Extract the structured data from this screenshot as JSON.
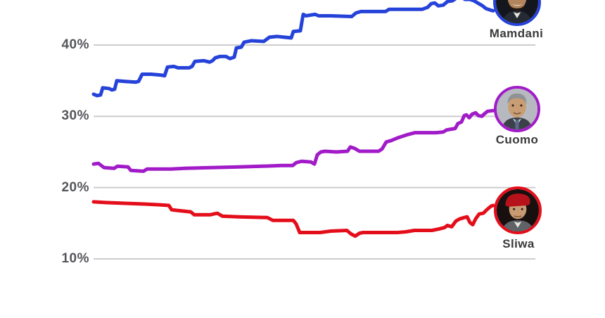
{
  "chart_data": {
    "type": "line",
    "title": "",
    "xlabel": "",
    "ylabel": "",
    "grid": true,
    "ylim": [
      10,
      47
    ],
    "x_axis_labels_visible": false,
    "legend_position": "avatar-badges-at-line-end-right",
    "yticks": [
      {
        "value": 40,
        "label": "40%"
      },
      {
        "value": 30,
        "label": "30%"
      },
      {
        "value": 20,
        "label": "20%"
      },
      {
        "value": 10,
        "label": "10%"
      }
    ],
    "colors": {
      "mamdani_blue": "#2643d9",
      "cuomo_purple": "#a11bc8",
      "sliwa_red": "#e40e1b",
      "gridline_gray": "#cdcdcd",
      "tick_text_gray": "#55565a",
      "name_text_dark": "#3a3a3c"
    },
    "series": [
      {
        "name": "Mamdani",
        "color": "#2643d9",
        "points": [
          [
            133,
            33.1
          ],
          [
            138,
            32.9
          ],
          [
            143,
            33.0
          ],
          [
            146,
            34.0
          ],
          [
            155,
            33.9
          ],
          [
            159,
            33.7
          ],
          [
            163,
            33.8
          ],
          [
            166,
            35.0
          ],
          [
            178,
            34.9
          ],
          [
            193,
            34.8
          ],
          [
            197,
            34.9
          ],
          [
            202,
            35.9
          ],
          [
            215,
            35.9
          ],
          [
            228,
            35.8
          ],
          [
            234,
            35.7
          ],
          [
            238,
            36.9
          ],
          [
            247,
            37.0
          ],
          [
            253,
            36.8
          ],
          [
            269,
            36.8
          ],
          [
            273,
            37.0
          ],
          [
            277,
            37.7
          ],
          [
            290,
            37.8
          ],
          [
            298,
            37.6
          ],
          [
            302,
            37.8
          ],
          [
            306,
            38.2
          ],
          [
            313,
            38.4
          ],
          [
            321,
            38.4
          ],
          [
            327,
            38.1
          ],
          [
            333,
            38.3
          ],
          [
            336,
            39.6
          ],
          [
            343,
            39.7
          ],
          [
            347,
            40.4
          ],
          [
            357,
            40.6
          ],
          [
            375,
            40.5
          ],
          [
            383,
            41.1
          ],
          [
            394,
            41.2
          ],
          [
            404,
            41.1
          ],
          [
            414,
            41.0
          ],
          [
            417,
            41.9
          ],
          [
            427,
            42.0
          ],
          [
            429,
            43.2
          ],
          [
            431,
            44.3
          ],
          [
            435,
            44.1
          ],
          [
            448,
            44.3
          ],
          [
            453,
            44.1
          ],
          [
            470,
            44.1
          ],
          [
            500,
            44.0
          ],
          [
            506,
            44.5
          ],
          [
            513,
            44.7
          ],
          [
            548,
            44.7
          ],
          [
            553,
            45.0
          ],
          [
            600,
            45.0
          ],
          [
            608,
            45.3
          ],
          [
            613,
            45.8
          ],
          [
            618,
            45.9
          ],
          [
            623,
            45.5
          ],
          [
            630,
            45.6
          ],
          [
            636,
            46.1
          ],
          [
            643,
            46.2
          ],
          [
            649,
            46.6
          ],
          [
            656,
            46.7
          ],
          [
            661,
            46.4
          ],
          [
            668,
            46.4
          ],
          [
            674,
            46.2
          ],
          [
            679,
            45.9
          ],
          [
            686,
            45.5
          ],
          [
            691,
            45.1
          ],
          [
            697,
            44.9
          ],
          [
            701,
            44.8
          ]
        ]
      },
      {
        "name": "Cuomo",
        "color": "#a11bc8",
        "points": [
          [
            133,
            23.3
          ],
          [
            140,
            23.4
          ],
          [
            144,
            23.1
          ],
          [
            148,
            22.8
          ],
          [
            162,
            22.7
          ],
          [
            167,
            23.0
          ],
          [
            182,
            22.9
          ],
          [
            186,
            22.4
          ],
          [
            204,
            22.3
          ],
          [
            209,
            22.6
          ],
          [
            243,
            22.6
          ],
          [
            262,
            22.7
          ],
          [
            300,
            22.8
          ],
          [
            340,
            22.9
          ],
          [
            372,
            23.0
          ],
          [
            400,
            23.1
          ],
          [
            416,
            23.1
          ],
          [
            421,
            23.5
          ],
          [
            429,
            23.7
          ],
          [
            442,
            23.6
          ],
          [
            447,
            23.3
          ],
          [
            451,
            24.6
          ],
          [
            456,
            25.0
          ],
          [
            462,
            25.1
          ],
          [
            478,
            25.0
          ],
          [
            494,
            25.1
          ],
          [
            498,
            25.7
          ],
          [
            504,
            25.5
          ],
          [
            511,
            25.1
          ],
          [
            538,
            25.1
          ],
          [
            543,
            25.4
          ],
          [
            549,
            26.4
          ],
          [
            556,
            26.6
          ],
          [
            566,
            27.0
          ],
          [
            578,
            27.4
          ],
          [
            590,
            27.7
          ],
          [
            620,
            27.7
          ],
          [
            630,
            27.8
          ],
          [
            635,
            28.1
          ],
          [
            641,
            28.2
          ],
          [
            647,
            28.3
          ],
          [
            651,
            29.0
          ],
          [
            656,
            29.2
          ],
          [
            660,
            30.1
          ],
          [
            663,
            30.2
          ],
          [
            667,
            29.8
          ],
          [
            671,
            30.3
          ],
          [
            676,
            30.5
          ],
          [
            680,
            30.1
          ],
          [
            685,
            30.0
          ],
          [
            688,
            30.3
          ],
          [
            693,
            30.7
          ],
          [
            701,
            30.8
          ]
        ]
      },
      {
        "name": "Sliwa",
        "color": "#e40e1b",
        "points": [
          [
            133,
            18.0
          ],
          [
            150,
            17.9
          ],
          [
            178,
            17.8
          ],
          [
            205,
            17.7
          ],
          [
            225,
            17.6
          ],
          [
            240,
            17.5
          ],
          [
            244,
            16.9
          ],
          [
            252,
            16.8
          ],
          [
            271,
            16.6
          ],
          [
            276,
            16.2
          ],
          [
            299,
            16.2
          ],
          [
            309,
            16.4
          ],
          [
            316,
            16.0
          ],
          [
            340,
            15.9
          ],
          [
            380,
            15.8
          ],
          [
            388,
            15.4
          ],
          [
            417,
            15.4
          ],
          [
            421,
            14.9
          ],
          [
            426,
            13.7
          ],
          [
            455,
            13.7
          ],
          [
            470,
            13.9
          ],
          [
            493,
            14.0
          ],
          [
            499,
            13.5
          ],
          [
            505,
            13.2
          ],
          [
            511,
            13.6
          ],
          [
            516,
            13.7
          ],
          [
            565,
            13.7
          ],
          [
            577,
            13.8
          ],
          [
            589,
            14.0
          ],
          [
            614,
            14.0
          ],
          [
            624,
            14.2
          ],
          [
            632,
            14.4
          ],
          [
            636,
            14.7
          ],
          [
            642,
            14.5
          ],
          [
            648,
            15.3
          ],
          [
            653,
            15.6
          ],
          [
            660,
            15.8
          ],
          [
            664,
            15.9
          ],
          [
            668,
            15.1
          ],
          [
            672,
            14.8
          ],
          [
            676,
            15.6
          ],
          [
            681,
            16.3
          ],
          [
            687,
            16.4
          ],
          [
            692,
            16.9
          ],
          [
            698,
            17.4
          ],
          [
            701,
            17.5
          ]
        ]
      }
    ]
  }
}
